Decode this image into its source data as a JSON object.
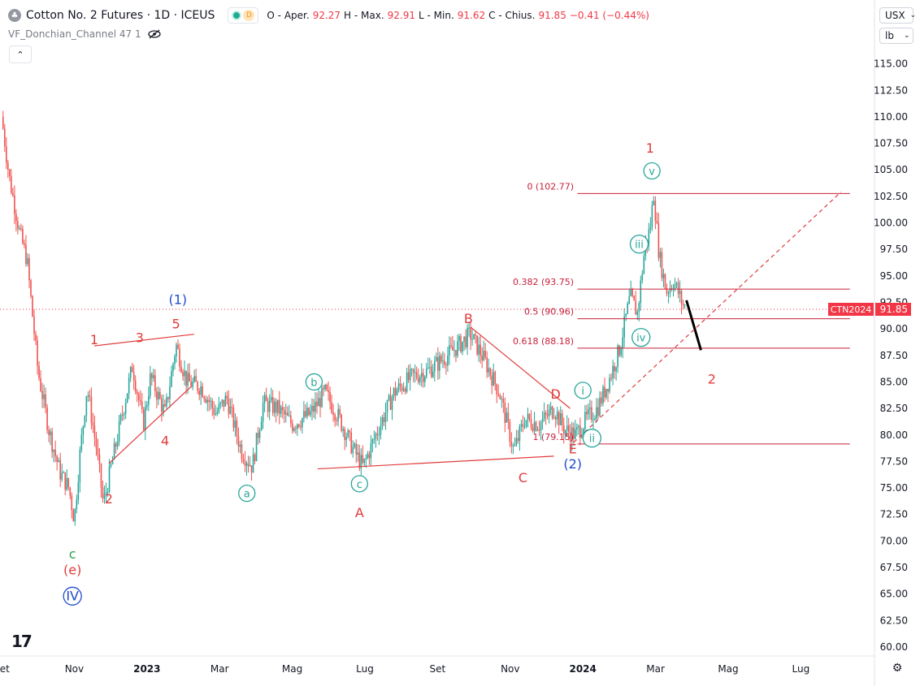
{
  "header": {
    "symbol": "Cotton No. 2 Futures · 1D · ICEUS",
    "d_badge": "D",
    "open_label": "O - Aper.",
    "open": "92.27",
    "high_label": "H - Max.",
    "high": "92.91",
    "low_label": "L - Min.",
    "low": "91.62",
    "close_label": "C - Chius.",
    "close": "91.85",
    "change": "−0.41 (−0.44%)"
  },
  "indicator": {
    "name": "VF_Donchian_Channel 47 1"
  },
  "currency": {
    "code": "USX",
    "unit": "lb"
  },
  "price_tag": {
    "label": "CTN2024",
    "value": "91.85"
  },
  "colors": {
    "up": "#26a69a",
    "down": "#ef5350",
    "wave_red": "#e03b3b",
    "wave_blue": "#1e4bc8",
    "wave_green": "#2aa34a",
    "fib": "#c8203a",
    "price_tag": "#f23645"
  },
  "chart_data": {
    "type": "candlestick",
    "symbol": "CTN2024",
    "timeframe": "1D",
    "ylim": [
      59.0,
      118.0
    ],
    "y_ticks": [
      "60.00",
      "62.50",
      "65.00",
      "67.50",
      "70.00",
      "72.50",
      "75.00",
      "77.50",
      "80.00",
      "82.50",
      "85.00",
      "87.50",
      "90.00",
      "92.50",
      "95.00",
      "97.50",
      "100.00",
      "102.50",
      "105.00",
      "107.50",
      "110.00",
      "112.50",
      "115.00"
    ],
    "x_ticks": [
      "Set",
      "Nov",
      "2023",
      "Mar",
      "Mag",
      "Lug",
      "Set",
      "Nov",
      "2024",
      "Mar",
      "Mag",
      "Lug"
    ],
    "x_tick_positions": [
      0,
      2,
      4,
      6,
      8,
      10,
      12,
      14,
      16,
      18,
      20,
      22
    ],
    "x_range": [
      0,
      24
    ],
    "price_path": [
      [
        0,
        110.0
      ],
      [
        0.2,
        104.5
      ],
      [
        0.5,
        99.0
      ],
      [
        0.7,
        96.5
      ],
      [
        1.0,
        86.0
      ],
      [
        1.3,
        80.5
      ],
      [
        1.6,
        76.5
      ],
      [
        1.85,
        75.0
      ],
      [
        2.0,
        72.0
      ],
      [
        2.15,
        78.0
      ],
      [
        2.35,
        84.5
      ],
      [
        2.6,
        79.0
      ],
      [
        2.8,
        73.5
      ],
      [
        3.2,
        80.0
      ],
      [
        3.6,
        86.5
      ],
      [
        3.9,
        81.0
      ],
      [
        4.1,
        85.5
      ],
      [
        4.5,
        82.0
      ],
      [
        4.8,
        88.5
      ],
      [
        5.1,
        85.0
      ],
      [
        5.5,
        84.5
      ],
      [
        5.9,
        82.0
      ],
      [
        6.2,
        83.5
      ],
      [
        6.6,
        78.5
      ],
      [
        6.9,
        77.0
      ],
      [
        7.2,
        83.0
      ],
      [
        7.6,
        82.5
      ],
      [
        8.0,
        81.0
      ],
      [
        8.5,
        82.0
      ],
      [
        8.9,
        84.0
      ],
      [
        9.3,
        81.5
      ],
      [
        9.7,
        78.5
      ],
      [
        9.95,
        77.0
      ],
      [
        10.3,
        80.0
      ],
      [
        10.8,
        84.0
      ],
      [
        11.3,
        85.5
      ],
      [
        11.7,
        86.0
      ],
      [
        12.1,
        87.0
      ],
      [
        12.6,
        88.5
      ],
      [
        12.9,
        89.5
      ],
      [
        13.3,
        87.0
      ],
      [
        13.7,
        84.0
      ],
      [
        14.1,
        78.5
      ],
      [
        14.4,
        81.5
      ],
      [
        14.8,
        81.0
      ],
      [
        15.2,
        82.5
      ],
      [
        15.5,
        80.5
      ],
      [
        15.8,
        80.0
      ],
      [
        16.1,
        81.5
      ],
      [
        16.4,
        82.5
      ],
      [
        16.7,
        85.0
      ],
      [
        17.0,
        88.0
      ],
      [
        17.3,
        93.0
      ],
      [
        17.5,
        91.5
      ],
      [
        17.7,
        97.5
      ],
      [
        17.85,
        99.5
      ],
      [
        17.95,
        102.77
      ],
      [
        18.1,
        97.0
      ],
      [
        18.3,
        93.5
      ],
      [
        18.5,
        94.5
      ],
      [
        18.75,
        92.3
      ],
      [
        18.85,
        91.85
      ]
    ],
    "last_price": 91.85,
    "fibonacci": [
      {
        "label": "0 (102.77)",
        "value": 102.77
      },
      {
        "label": "0.382 (93.75)",
        "value": 93.75
      },
      {
        "label": "0.5 (90.96)",
        "value": 90.96
      },
      {
        "label": "0.618 (88.18)",
        "value": 88.18
      },
      {
        "label": "1 (79.15)",
        "value": 79.15
      }
    ],
    "wave_labels": [
      {
        "id": "c-green",
        "text": "c",
        "t": 1.95,
        "p": 68.8,
        "color": "wave_green",
        "style": "plain"
      },
      {
        "id": "e-red",
        "text": "(e)",
        "t": 1.95,
        "p": 67.3,
        "color": "wave_red",
        "style": "plain"
      },
      {
        "id": "IV",
        "text": "IV",
        "t": 1.95,
        "p": 64.8,
        "color": "wave_blue",
        "style": "circle"
      },
      {
        "id": "w1",
        "text": "1",
        "t": 2.55,
        "p": 89.0,
        "color": "wave_red",
        "style": "plain"
      },
      {
        "id": "w2",
        "text": "2",
        "t": 2.95,
        "p": 74.0,
        "color": "wave_red",
        "style": "plain"
      },
      {
        "id": "w3",
        "text": "3",
        "t": 3.8,
        "p": 89.2,
        "color": "wave_red",
        "style": "plain"
      },
      {
        "id": "w4",
        "text": "4",
        "t": 4.5,
        "p": 79.5,
        "color": "wave_red",
        "style": "plain"
      },
      {
        "id": "w5",
        "text": "5",
        "t": 4.8,
        "p": 90.5,
        "color": "wave_red",
        "style": "plain"
      },
      {
        "id": "w1b",
        "text": "(1)",
        "t": 4.85,
        "p": 92.8,
        "color": "wave_blue",
        "style": "plain"
      },
      {
        "id": "a",
        "text": "a",
        "t": 6.75,
        "p": 74.5,
        "color": "up",
        "style": "circle"
      },
      {
        "id": "b",
        "text": "b",
        "t": 8.6,
        "p": 85.0,
        "color": "up",
        "style": "circle"
      },
      {
        "id": "c",
        "text": "c",
        "t": 9.85,
        "p": 75.4,
        "color": "up",
        "style": "circle"
      },
      {
        "id": "A",
        "text": "A",
        "t": 9.85,
        "p": 72.7,
        "color": "wave_red",
        "style": "plain"
      },
      {
        "id": "B",
        "text": "B",
        "t": 12.85,
        "p": 91.0,
        "color": "wave_red",
        "style": "plain"
      },
      {
        "id": "C",
        "text": "C",
        "t": 14.35,
        "p": 76.0,
        "color": "wave_red",
        "style": "plain"
      },
      {
        "id": "D",
        "text": "D",
        "t": 15.25,
        "p": 83.9,
        "color": "wave_red",
        "style": "plain"
      },
      {
        "id": "E",
        "text": "E",
        "t": 15.72,
        "p": 78.7,
        "color": "wave_red",
        "style": "plain"
      },
      {
        "id": "w2b",
        "text": "(2)",
        "t": 15.72,
        "p": 77.3,
        "color": "wave_blue",
        "style": "plain"
      },
      {
        "id": "ii",
        "text": "ii",
        "t": 16.25,
        "p": 79.7,
        "color": "up",
        "style": "circle"
      },
      {
        "id": "i",
        "text": "i",
        "t": 16.0,
        "p": 84.2,
        "color": "up",
        "style": "circle"
      },
      {
        "id": "iv",
        "text": "iv",
        "t": 17.6,
        "p": 89.2,
        "color": "up",
        "style": "circle"
      },
      {
        "id": "iii",
        "text": "iii",
        "t": 17.55,
        "p": 98.0,
        "color": "up",
        "style": "circle"
      },
      {
        "id": "v",
        "text": "v",
        "t": 17.9,
        "p": 104.9,
        "color": "up",
        "style": "circle"
      },
      {
        "id": "top1",
        "text": "1",
        "t": 17.85,
        "p": 107.1,
        "color": "wave_red",
        "style": "plain"
      },
      {
        "id": "proj2",
        "text": "2",
        "t": 19.55,
        "p": 85.3,
        "color": "wave_red",
        "style": "plain"
      }
    ],
    "trendlines": [
      {
        "id": "triangle-upper",
        "from": [
          2.55,
          88.4
        ],
        "to": [
          5.3,
          89.5
        ],
        "style": "solid"
      },
      {
        "id": "triangle-lower",
        "from": [
          2.95,
          77.3
        ],
        "to": [
          5.2,
          84.5
        ],
        "style": "solid"
      },
      {
        "id": "abc-lower",
        "from": [
          8.7,
          76.8
        ],
        "to": [
          15.2,
          78.0
        ],
        "style": "solid"
      },
      {
        "id": "bd-upper",
        "from": [
          12.9,
          90.2
        ],
        "to": [
          15.65,
          82.5
        ],
        "style": "solid"
      },
      {
        "id": "projection",
        "from": [
          18.85,
          92.7
        ],
        "to": [
          19.25,
          88.0
        ],
        "style": "bold"
      },
      {
        "id": "trend-dashed",
        "from": [
          15.75,
          79.3
        ],
        "to": [
          23.1,
          102.9
        ],
        "style": "dashed"
      }
    ]
  }
}
